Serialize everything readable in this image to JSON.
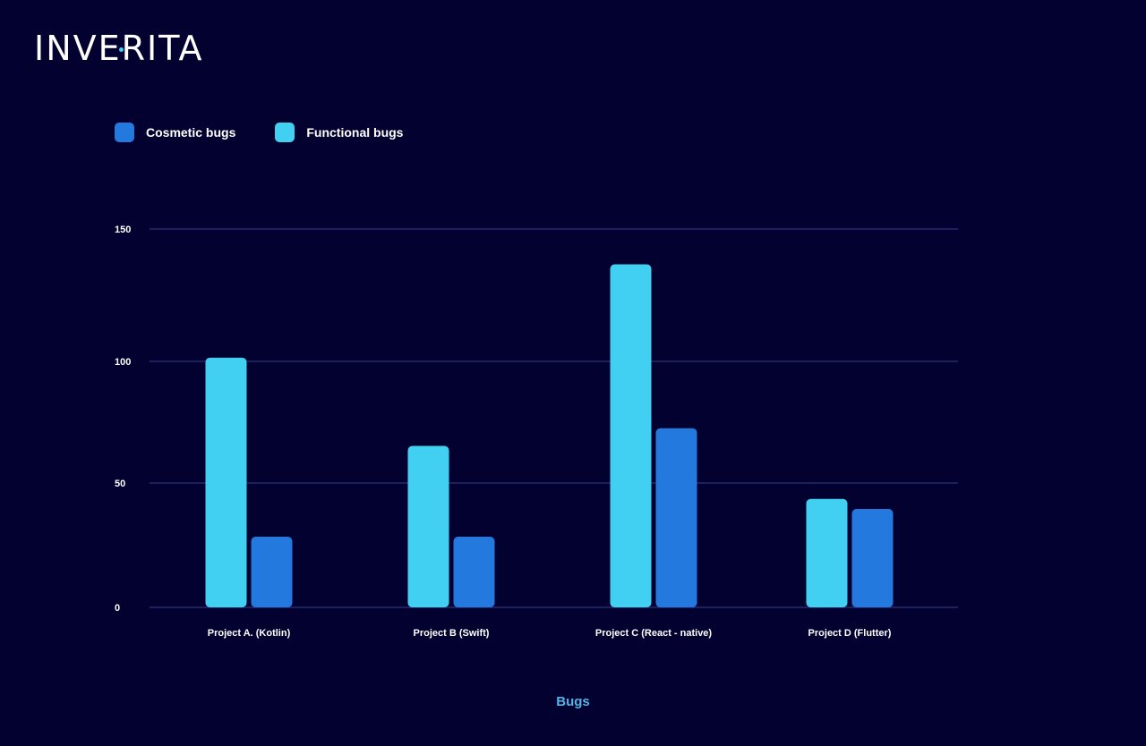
{
  "brand": {
    "logo_left": "INVE",
    "logo_right": "RITA"
  },
  "legend": {
    "items": [
      {
        "label": "Cosmetic bugs",
        "color": "#2479de"
      },
      {
        "label": "Functional bugs",
        "color": "#41d0f2"
      }
    ]
  },
  "chart_data": {
    "type": "bar",
    "categories": [
      "Project A. (Kotlin)",
      "Project B (Swift)",
      "Project C (React - native)",
      "Project D (Flutter)"
    ],
    "series": [
      {
        "name": "Functional bugs",
        "values": [
          99,
          64,
          136,
          43
        ],
        "color": "#41d0f2"
      },
      {
        "name": "Cosmetic bugs",
        "values": [
          28,
          28,
          71,
          39
        ],
        "color": "#2479de"
      }
    ],
    "y_ticks": [
      0,
      50,
      100,
      150
    ],
    "ylim": [
      0,
      150
    ],
    "xlabel": "Bugs",
    "ylabel": "",
    "grid": true,
    "legend_position": "top-left"
  }
}
